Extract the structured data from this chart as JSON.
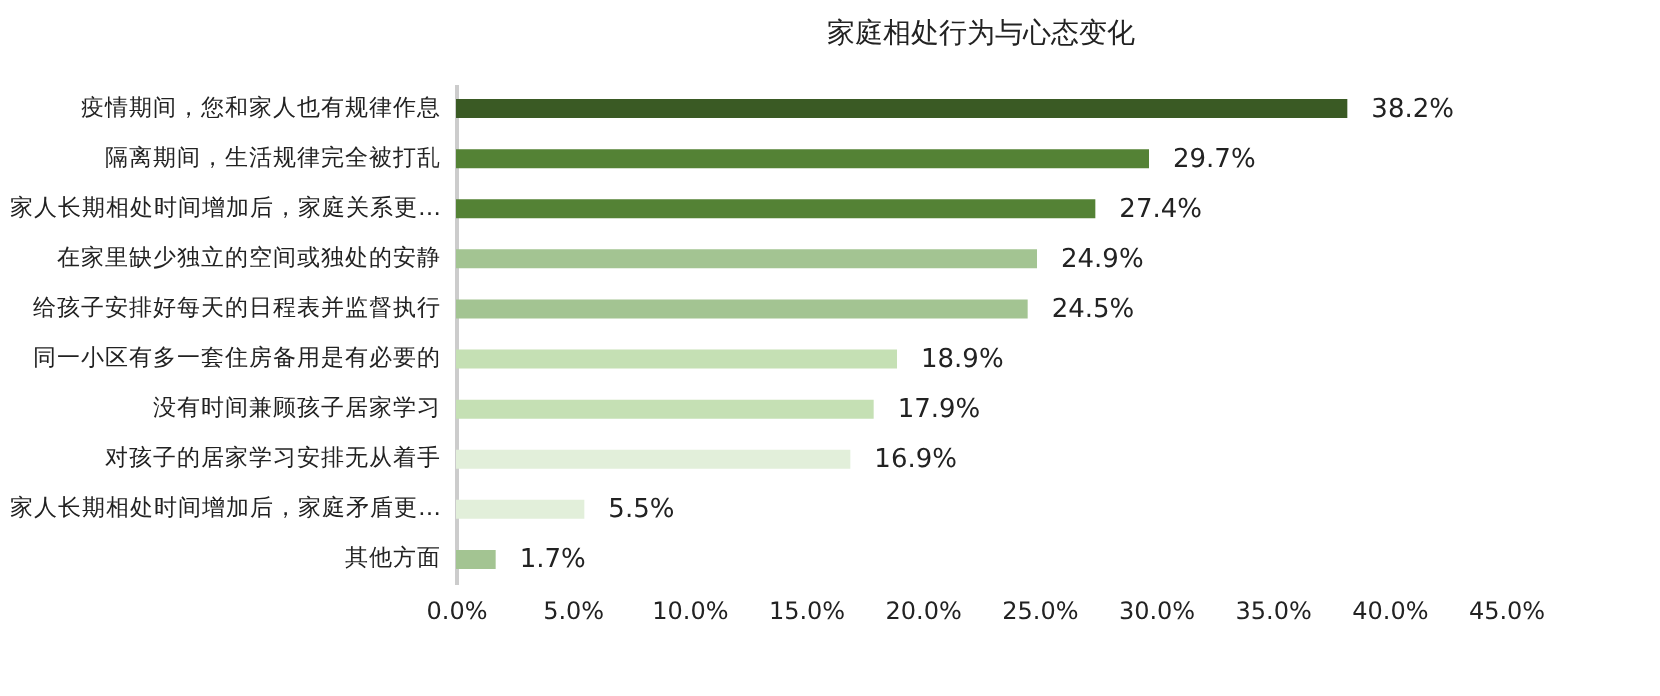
{
  "chart_data": {
    "type": "bar",
    "orientation": "horizontal",
    "title": "家庭相处行为与心态变化",
    "categories": [
      "疫情期间，您和家人也有规律作息",
      "隔离期间，生活规律完全被打乱",
      "家人长期相处时间增加后，家庭关系更…",
      "在家里缺少独立的空间或独处的安静",
      "给孩子安排好每天的日程表并监督执行",
      "同一小区有多一套住房备用是有必要的",
      "没有时间兼顾孩子居家学习",
      "对孩子的居家学习安排无从着手",
      "家人长期相处时间增加后，家庭矛盾更…",
      "其他方面"
    ],
    "values": [
      38.2,
      29.7,
      27.4,
      24.9,
      24.5,
      18.9,
      17.9,
      16.9,
      5.5,
      1.7
    ],
    "value_labels": [
      "38.2%",
      "29.7%",
      "27.4%",
      "24.9%",
      "24.5%",
      "18.9%",
      "17.9%",
      "16.9%",
      "5.5%",
      "1.7%"
    ],
    "colors": [
      "#3a5a24",
      "#548235",
      "#548235",
      "#a3c492",
      "#a3c492",
      "#c5e0b4",
      "#c5e0b4",
      "#e2efda",
      "#e2efda",
      "#a3c492"
    ],
    "xlim": [
      0,
      45
    ],
    "xticks": [
      {
        "value": 0,
        "label": "0.0%"
      },
      {
        "value": 5,
        "label": "5.0%"
      },
      {
        "value": 10,
        "label": "10.0%"
      },
      {
        "value": 15,
        "label": "15.0%"
      },
      {
        "value": 20,
        "label": "20.0%"
      },
      {
        "value": 25,
        "label": "25.0%"
      },
      {
        "value": 30,
        "label": "30.0%"
      },
      {
        "value": 35,
        "label": "35.0%"
      },
      {
        "value": 40,
        "label": "40.0%"
      },
      {
        "value": 45,
        "label": "45.0%"
      }
    ],
    "grid": false
  }
}
